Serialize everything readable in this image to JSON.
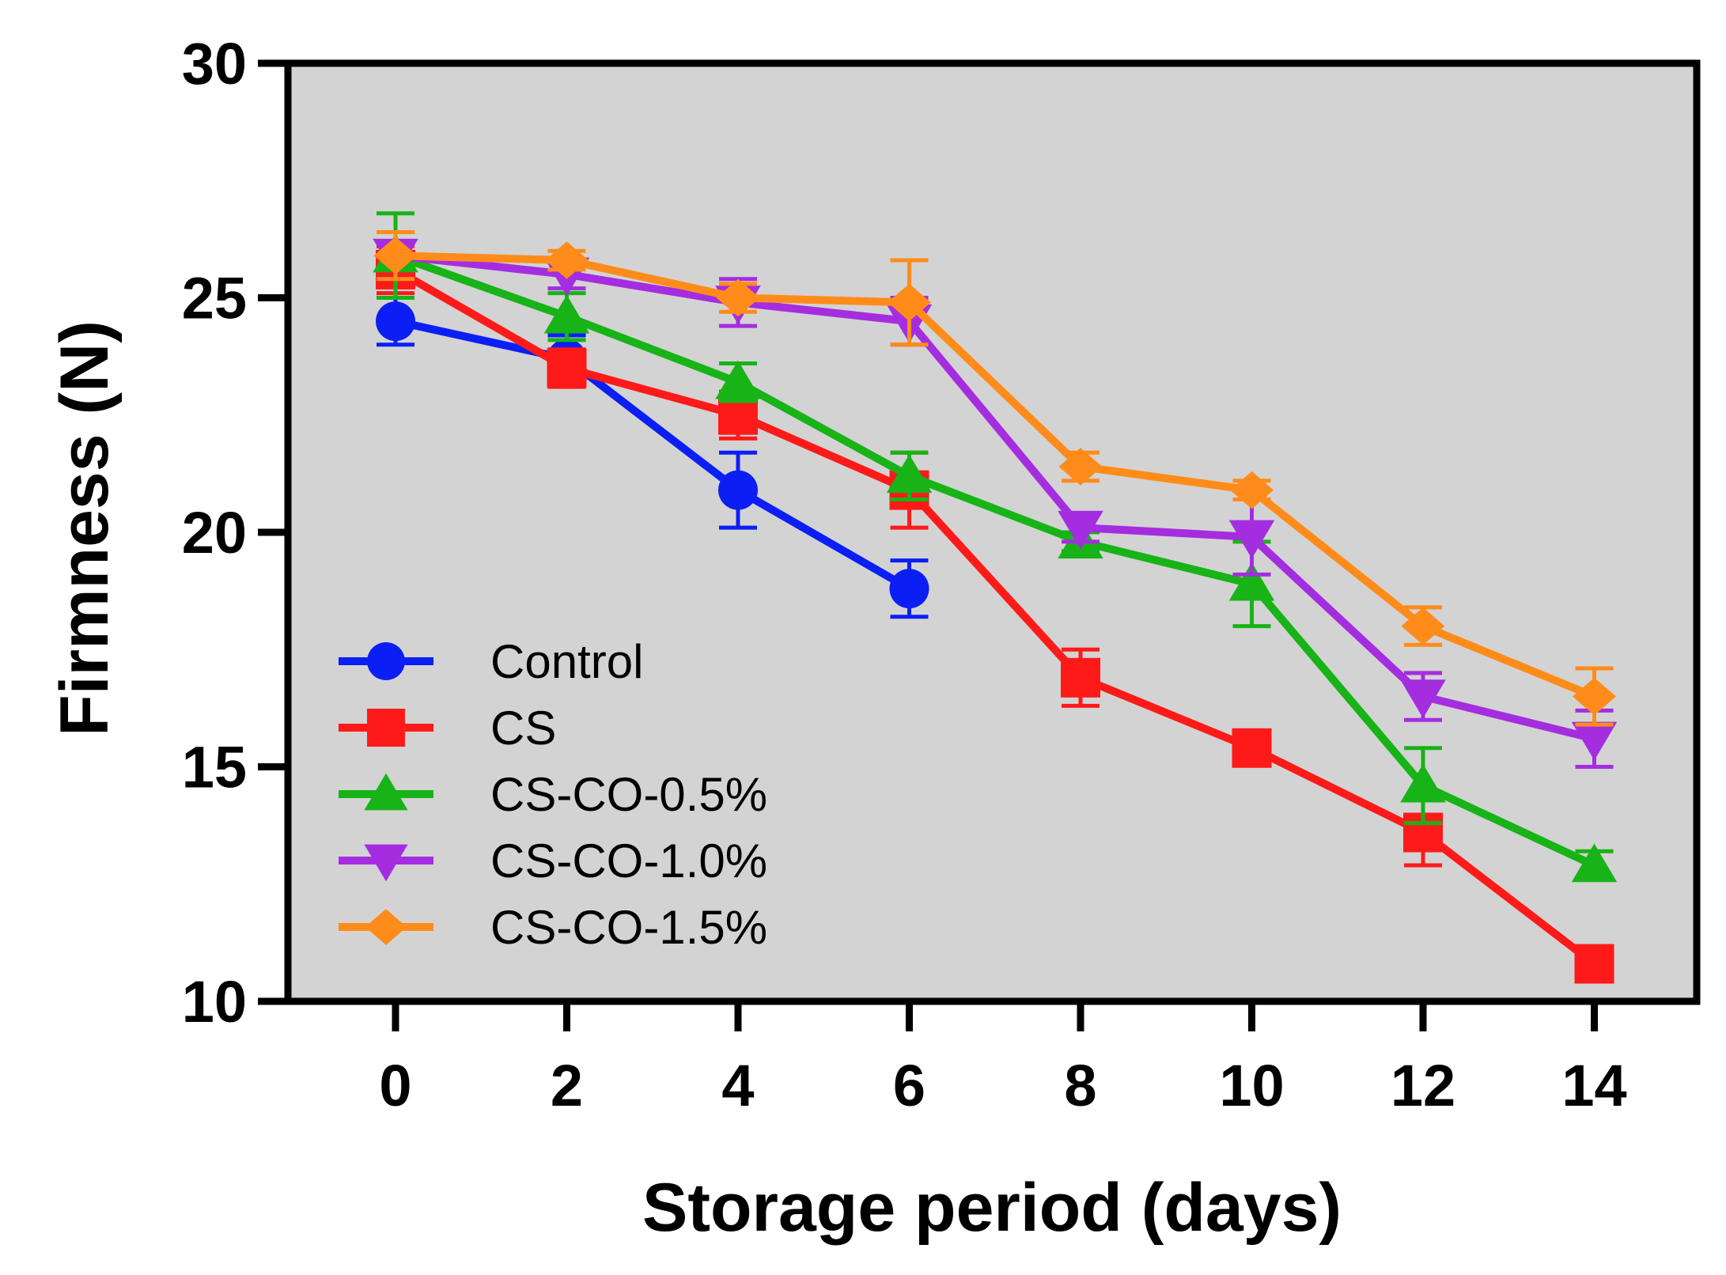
{
  "chart_data": {
    "type": "line",
    "xlabel": "Storage period (days)",
    "ylabel": "Firmness (N)",
    "x": [
      0,
      2,
      4,
      6,
      8,
      10,
      12,
      14
    ],
    "x_ticks": [
      "0",
      "2",
      "4",
      "6",
      "8",
      "10",
      "12",
      "14"
    ],
    "ylim": [
      10,
      30
    ],
    "y_ticks": [
      "10",
      "15",
      "20",
      "25",
      "30"
    ],
    "grid": false,
    "legend_position": "bottom-left",
    "plot_background": "#d3d3d3",
    "series": [
      {
        "name": "Control",
        "color": "#0b1ff5",
        "marker": "circle",
        "values": [
          24.5,
          23.7,
          20.9,
          18.8,
          null,
          null,
          null,
          null
        ],
        "errors": [
          0.5,
          0.5,
          0.8,
          0.6,
          null,
          null,
          null,
          null
        ]
      },
      {
        "name": "CS",
        "color": "#ff1a1a",
        "marker": "square",
        "values": [
          25.6,
          23.5,
          22.5,
          20.9,
          16.9,
          15.4,
          13.6,
          10.8
        ],
        "errors": [
          0.5,
          0.4,
          0.5,
          0.8,
          0.6,
          0.3,
          0.7,
          0.3
        ]
      },
      {
        "name": "CS-CO-0.5%",
        "color": "#17b317",
        "marker": "triangle-up",
        "values": [
          25.9,
          24.6,
          23.2,
          21.2,
          19.8,
          18.9,
          14.6,
          12.9
        ],
        "errors": [
          0.9,
          0.5,
          0.4,
          0.5,
          0.2,
          0.9,
          0.8,
          0.3
        ]
      },
      {
        "name": "CS-CO-1.0%",
        "color": "#a52de0",
        "marker": "triangle-down",
        "values": [
          25.9,
          25.5,
          24.9,
          24.5,
          20.1,
          19.9,
          16.5,
          15.6
        ],
        "errors": [
          0.5,
          0.3,
          0.5,
          0.5,
          0.3,
          0.8,
          0.5,
          0.6
        ]
      },
      {
        "name": "CS-CO-1.5%",
        "color": "#ff8c1a",
        "marker": "diamond",
        "values": [
          25.9,
          25.8,
          25.0,
          24.9,
          21.4,
          20.9,
          18.0,
          16.5
        ],
        "errors": [
          0.5,
          0.2,
          0.3,
          0.9,
          0.3,
          0.2,
          0.4,
          0.6
        ]
      }
    ]
  }
}
